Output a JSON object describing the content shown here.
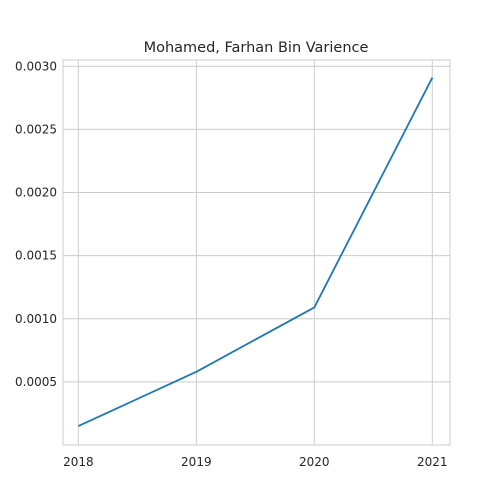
{
  "chart_data": {
    "type": "line",
    "title": "Mohamed, Farhan Bin Varience",
    "xlabel": "",
    "ylabel": "",
    "x": [
      2018,
      2019,
      2020,
      2021
    ],
    "x_tick_labels": [
      "2018",
      "2019",
      "2020",
      "2021"
    ],
    "series": [
      {
        "name": "Varience",
        "values": [
          0.00015,
          0.00058,
          0.00109,
          0.00291
        ]
      }
    ],
    "y_ticks": [
      0.0005,
      0.001,
      0.0015,
      0.002,
      0.0025,
      0.003
    ],
    "y_tick_labels": [
      "0.0005",
      "0.0010",
      "0.0015",
      "0.0020",
      "0.0025",
      "0.0030"
    ],
    "xlim": [
      2017.87,
      2021.15
    ],
    "ylim": [
      0.0,
      0.00305
    ],
    "grid": true,
    "line_color": "#1f77b4"
  }
}
